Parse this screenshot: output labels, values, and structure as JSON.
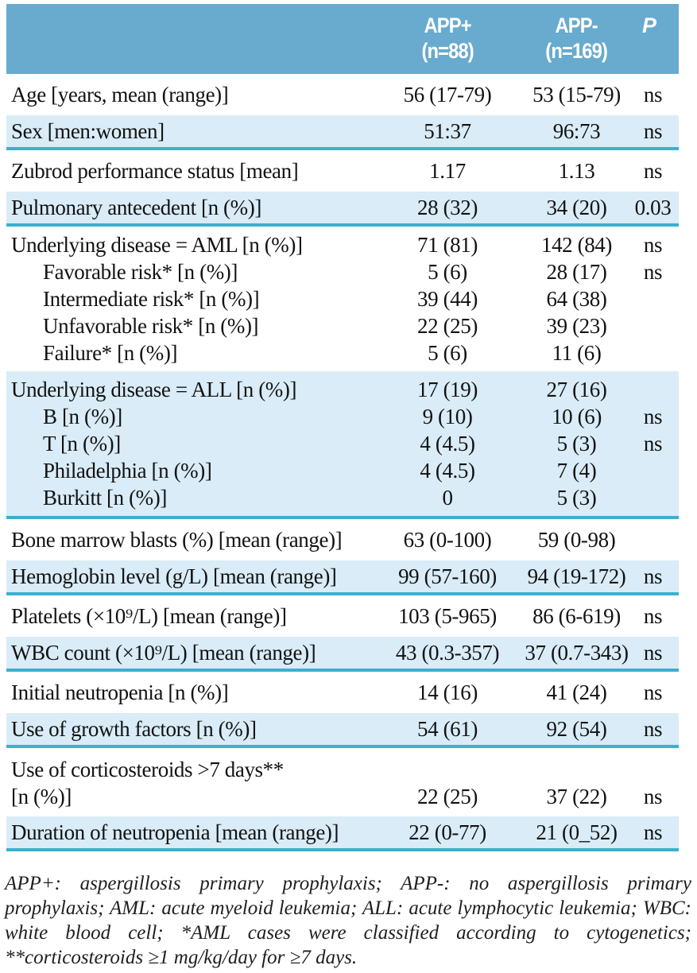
{
  "colors": {
    "header_blue": "#68abce",
    "band_blue": "#d9ecf7",
    "line_teal": "#3bb0ce",
    "header_text": "#ffffff",
    "body_text": "#121212"
  },
  "table": {
    "columns": {
      "app_plus_line1": "APP+",
      "app_plus_line2": "(n=88)",
      "app_minus_line1": "APP-",
      "app_minus_line2": "(n=169)",
      "p": "P"
    },
    "rows": [
      {
        "label": "Age [years, mean (range)]",
        "app_plus": "56 (17-79)",
        "app_minus": "53 (15-79)",
        "p": "ns",
        "shaded": false,
        "line_after": false,
        "indent": false,
        "style": "single"
      },
      {
        "label": "Sex [men:women]",
        "app_plus": "51:37",
        "app_minus": "96:73",
        "p": "ns",
        "shaded": true,
        "line_after": true,
        "indent": false,
        "style": "single"
      },
      {
        "label": "Zubrod performance status [mean]",
        "app_plus": "1.17",
        "app_minus": "1.13",
        "p": "ns",
        "shaded": false,
        "line_after": false,
        "indent": false,
        "style": "single"
      },
      {
        "label": "Pulmonary antecedent [n (%)]",
        "app_plus": "28 (32)",
        "app_minus": "34 (20)",
        "p": "0.03",
        "shaded": true,
        "line_after": true,
        "indent": false,
        "style": "single"
      },
      {
        "label": "Underlying disease = AML [n (%)]",
        "app_plus": "71 (81)",
        "app_minus": "142 (84)",
        "p": "ns",
        "shaded": false,
        "line_after": false,
        "indent": false,
        "style": "group-first"
      },
      {
        "label": "Favorable risk* [n (%)]",
        "app_plus": "5 (6)",
        "app_minus": "28 (17)",
        "p": "ns",
        "shaded": false,
        "line_after": false,
        "indent": true,
        "style": "group-mid"
      },
      {
        "label": "Intermediate risk* [n (%)]",
        "app_plus": "39 (44)",
        "app_minus": "64 (38)",
        "p": "",
        "shaded": false,
        "line_after": false,
        "indent": true,
        "style": "group-mid"
      },
      {
        "label": "Unfavorable risk* [n (%)]",
        "app_plus": "22 (25)",
        "app_minus": "39 (23)",
        "p": "",
        "shaded": false,
        "line_after": false,
        "indent": true,
        "style": "group-mid"
      },
      {
        "label": "Failure* [n (%)]",
        "app_plus": "5 (6)",
        "app_minus": "11 (6)",
        "p": "",
        "shaded": false,
        "line_after": false,
        "indent": true,
        "style": "group-last"
      },
      {
        "label": "Underlying disease = ALL [n (%)]",
        "app_plus": "17 (19)",
        "app_minus": "27 (16)",
        "p": "",
        "shaded": true,
        "line_after": false,
        "indent": false,
        "style": "group-first"
      },
      {
        "label": "B [n (%)]",
        "app_plus": "9 (10)",
        "app_minus": "10 (6)",
        "p": "ns",
        "shaded": true,
        "line_after": false,
        "indent": true,
        "style": "group-mid"
      },
      {
        "label": "T [n (%)]",
        "app_plus": "4 (4.5)",
        "app_minus": "5 (3)",
        "p": "ns",
        "shaded": true,
        "line_after": false,
        "indent": true,
        "style": "group-mid"
      },
      {
        "label": "Philadelphia [n (%)]",
        "app_plus": "4 (4.5)",
        "app_minus": "7 (4)",
        "p": "",
        "shaded": true,
        "line_after": false,
        "indent": true,
        "style": "group-mid"
      },
      {
        "label": "Burkitt [n (%)]",
        "app_plus": "0",
        "app_minus": "5 (3)",
        "p": "",
        "shaded": true,
        "line_after": true,
        "indent": true,
        "style": "group-last"
      },
      {
        "label": "Bone marrow blasts (%) [mean (range)]",
        "app_plus": "63 (0-100)",
        "app_minus": "59 (0-98)",
        "p": "",
        "shaded": false,
        "line_after": false,
        "indent": false,
        "style": "single"
      },
      {
        "label": "Hemoglobin level (g/L) [mean (range)]",
        "app_plus": "99 (57-160)",
        "app_minus": "94 (19-172)",
        "p": "ns",
        "shaded": true,
        "line_after": true,
        "indent": false,
        "style": "single"
      },
      {
        "label": "Platelets (×10⁹/L) [mean (range)]",
        "app_plus": "103 (5-965)",
        "app_minus": "86 (6-619)",
        "p": "ns",
        "shaded": false,
        "line_after": false,
        "indent": false,
        "style": "single"
      },
      {
        "label": "WBC count (×10⁹/L) [mean (range)]",
        "app_plus": "43 (0.3-357)",
        "app_minus": "37 (0.7-343)",
        "p": "ns",
        "shaded": true,
        "line_after": true,
        "indent": false,
        "style": "single"
      },
      {
        "label": "Initial neutropenia [n (%)]",
        "app_plus": "14 (16)",
        "app_minus": "41 (24)",
        "p": "ns",
        "shaded": false,
        "line_after": false,
        "indent": false,
        "style": "single"
      },
      {
        "label": "Use of growth factors [n (%)]",
        "app_plus": "54 (61)",
        "app_minus": "92 (54)",
        "p": "ns",
        "shaded": true,
        "line_after": true,
        "indent": false,
        "style": "single"
      },
      {
        "label": "Use of corticosteroids >7 days**",
        "app_plus": "",
        "app_minus": "",
        "p": "",
        "shaded": false,
        "line_after": false,
        "indent": false,
        "style": "head2"
      },
      {
        "label": "[n (%)]",
        "app_plus": "22 (25)",
        "app_minus": "37 (22)",
        "p": "ns",
        "shaded": false,
        "line_after": false,
        "indent": false,
        "style": "tail2"
      },
      {
        "label": "Duration of neutropenia [mean (range)]",
        "app_plus": "22 (0-77)",
        "app_minus": "21 (0_52)",
        "p": "ns",
        "shaded": true,
        "line_after": true,
        "indent": false,
        "style": "single"
      }
    ]
  },
  "footnote": {
    "text": "APP+: aspergillosis primary prophylaxis; APP-: no aspergillosis primary prophylaxis; AML: acute myeloid leukemia; ALL: acute lymphocytic leukemia; WBC: white blood cell; *AML cases were classified according to cytogenetics; **corticosteroids ≥1 mg/kg/day for ≥7 days."
  }
}
